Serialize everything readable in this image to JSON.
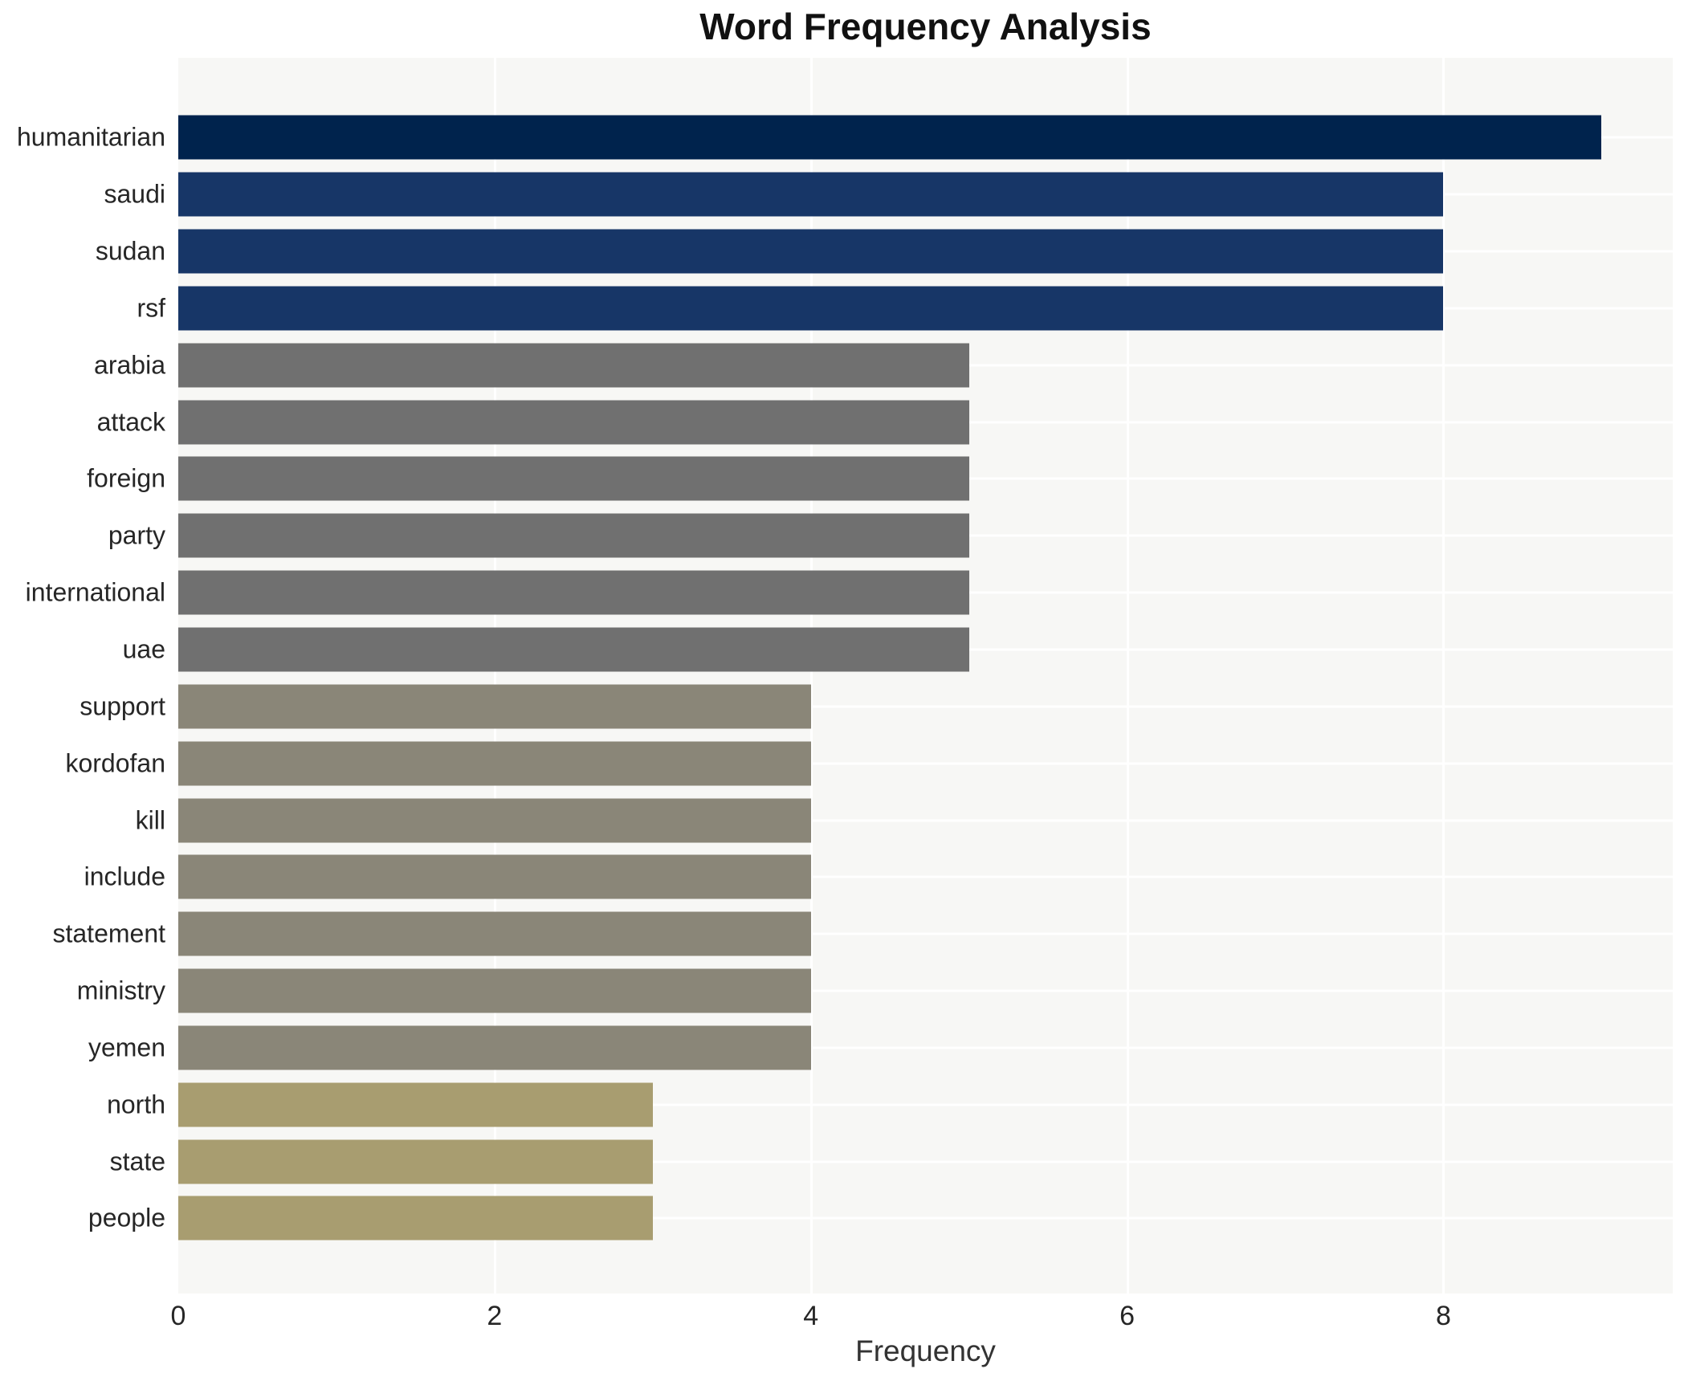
{
  "title": "Word Frequency Analysis",
  "chart_data": {
    "type": "bar",
    "orientation": "horizontal",
    "title": "Word Frequency Analysis",
    "xlabel": "Frequency",
    "ylabel": "",
    "categories": [
      "humanitarian",
      "saudi",
      "sudan",
      "rsf",
      "arabia",
      "attack",
      "foreign",
      "party",
      "international",
      "uae",
      "support",
      "kordofan",
      "kill",
      "include",
      "statement",
      "ministry",
      "yemen",
      "north",
      "state",
      "people"
    ],
    "values": [
      9,
      8,
      8,
      8,
      5,
      5,
      5,
      5,
      5,
      5,
      4,
      4,
      4,
      4,
      4,
      4,
      4,
      3,
      3,
      3
    ],
    "bar_colors": [
      "#00234d",
      "#173667",
      "#173667",
      "#173667",
      "#707070",
      "#707070",
      "#707070",
      "#707070",
      "#707070",
      "#707070",
      "#8a8678",
      "#8a8678",
      "#8a8678",
      "#8a8678",
      "#8a8678",
      "#8a8678",
      "#8a8678",
      "#a89d70",
      "#a89d70",
      "#a89d70"
    ],
    "xticks": [
      "0",
      "2",
      "4",
      "6",
      "8"
    ],
    "xtick_values": [
      0,
      2,
      4,
      6,
      8
    ],
    "xlim": [
      0,
      9.45
    ],
    "grid": true,
    "grid_color": "#ffffff",
    "plot_bg": "#f7f7f5",
    "page_bg": "#ffffff",
    "legend": false,
    "text_color": "#262626",
    "title_color": "#111111"
  }
}
